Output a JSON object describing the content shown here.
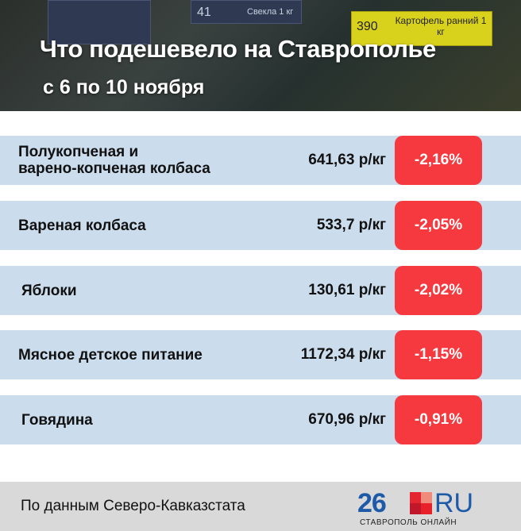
{
  "header": {
    "title": "Что подешевело на Ставрополье",
    "subtitle": "с 6 по 10 ноября",
    "photo_tags": [
      "Свекла 1 кг",
      "41",
      "390",
      "Картофель ранний 1 кг"
    ]
  },
  "items": [
    {
      "name_line1": "Полукопченая и",
      "name_line2": "варено-копченая колбаса",
      "price": "641,63 р/кг",
      "change": "-2,16%"
    },
    {
      "name_line1": "Вареная колбаса",
      "name_line2": "",
      "price": "533,7 р/кг",
      "change": "-2,05%"
    },
    {
      "name_line1": "Яблоки",
      "name_line2": "",
      "price": "130,61 р/кг",
      "change": "-2,02%"
    },
    {
      "name_line1": "Мясное детское питание",
      "name_line2": "",
      "price": "1172,34 р/кг",
      "change": "-1,15%"
    },
    {
      "name_line1": "Говядина",
      "name_line2": "",
      "price": "670,96 р/кг",
      "change": "-0,91%"
    }
  ],
  "footer": {
    "source": "По данным Северо-Кавказстата",
    "logo_number": "26",
    "logo_ru": "RU",
    "logo_sub": "СТАВРОПОЛЬ ОНЛАЙН"
  },
  "colors": {
    "row_bg": "#cbdcec",
    "badge": "#f5393e",
    "logo_blue": "#1d5aa8"
  }
}
